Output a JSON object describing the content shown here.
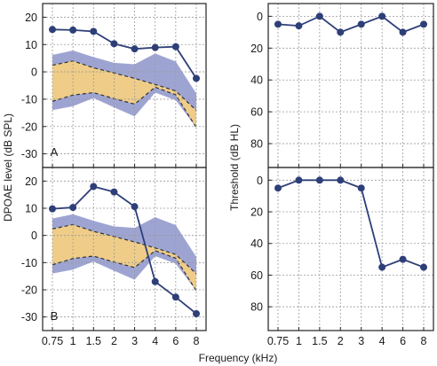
{
  "colors": {
    "series": "#2e3f78",
    "outer_band": "#9ea4d2",
    "inner_band": "#efcd88",
    "dashed": "#333333",
    "grid": "#9a9a9a",
    "frame": "#222222"
  },
  "x_label": "Frequency (kHz)",
  "y_label_left": "DPOAE level (dB SPL)",
  "y_label_right": "Threshold (dB HL)",
  "chart_data": [
    {
      "type": "line",
      "panel_label": "A",
      "categories": [
        "0.75",
        "1",
        "1.5",
        "2",
        "3",
        "4",
        "6",
        "8"
      ],
      "ylabel": "DPOAE level (dB SPL)",
      "ylim": [
        -35,
        25
      ],
      "yticks": [
        20,
        10,
        0,
        -10,
        -20,
        -30
      ],
      "grid": true,
      "series": [
        {
          "values": [
            15.5,
            15.3,
            14.8,
            10.3,
            8.4,
            8.9,
            9.2,
            -2.4
          ]
        }
      ],
      "bands": {
        "outer_upper": [
          6.2,
          7.8,
          5.4,
          3.3,
          2.8,
          6.7,
          3.8,
          -7.9
        ],
        "inner_upper": [
          2.4,
          4.0,
          1.5,
          -0.4,
          -2.4,
          -4.6,
          -7.0,
          -14.1
        ],
        "inner_lower": [
          -10.8,
          -8.5,
          -7.6,
          -9.8,
          -11.8,
          -5.6,
          -8.4,
          -20.4
        ],
        "outer_lower": [
          -14.0,
          -12.6,
          -9.6,
          -13.0,
          -16.3,
          -7.6,
          -10.4,
          -20.4
        ]
      }
    },
    {
      "type": "line",
      "panel_label": "B",
      "categories": [
        "0.75",
        "1",
        "1.5",
        "2",
        "3",
        "4",
        "6",
        "8"
      ],
      "xlabel": "Frequency (kHz)",
      "ylabel": "DPOAE level (dB SPL)",
      "ylim": [
        -35,
        25
      ],
      "yticks": [
        20,
        10,
        0,
        -10,
        -20,
        -30
      ],
      "grid": true,
      "series": [
        {
          "values": [
            9.8,
            10.3,
            18.0,
            16.0,
            10.6,
            -17.0,
            -22.7,
            -28.8
          ]
        }
      ],
      "bands": {
        "outer_upper": [
          6.2,
          7.8,
          5.4,
          3.3,
          2.8,
          6.7,
          3.8,
          -7.9
        ],
        "inner_upper": [
          2.4,
          4.0,
          1.5,
          -0.4,
          -2.4,
          -4.6,
          -7.0,
          -14.1
        ],
        "inner_lower": [
          -10.8,
          -8.5,
          -7.6,
          -9.8,
          -11.8,
          -5.6,
          -8.4,
          -20.4
        ],
        "outer_lower": [
          -14.0,
          -12.6,
          -9.6,
          -13.0,
          -16.3,
          -7.6,
          -10.4,
          -20.4
        ]
      }
    },
    {
      "type": "line",
      "categories": [
        "0.75",
        "1",
        "1.5",
        "2",
        "3",
        "4",
        "6",
        "8"
      ],
      "ylabel": "Threshold (dB HL)",
      "ylim": [
        -8,
        95
      ],
      "y_inverted": true,
      "yticks": [
        0,
        20,
        40,
        60,
        80
      ],
      "grid": true,
      "series": [
        {
          "values": [
            5,
            6,
            0,
            10,
            5,
            0,
            10,
            5
          ]
        }
      ]
    },
    {
      "type": "line",
      "categories": [
        "0.75",
        "1",
        "1.5",
        "2",
        "3",
        "4",
        "6",
        "8"
      ],
      "xlabel": "Frequency (kHz)",
      "ylabel": "Threshold (dB HL)",
      "ylim": [
        -8,
        95
      ],
      "y_inverted": true,
      "yticks": [
        0,
        20,
        40,
        60,
        80
      ],
      "grid": true,
      "series": [
        {
          "values": [
            5,
            0,
            0,
            0,
            5,
            55,
            50,
            55
          ]
        }
      ]
    }
  ]
}
